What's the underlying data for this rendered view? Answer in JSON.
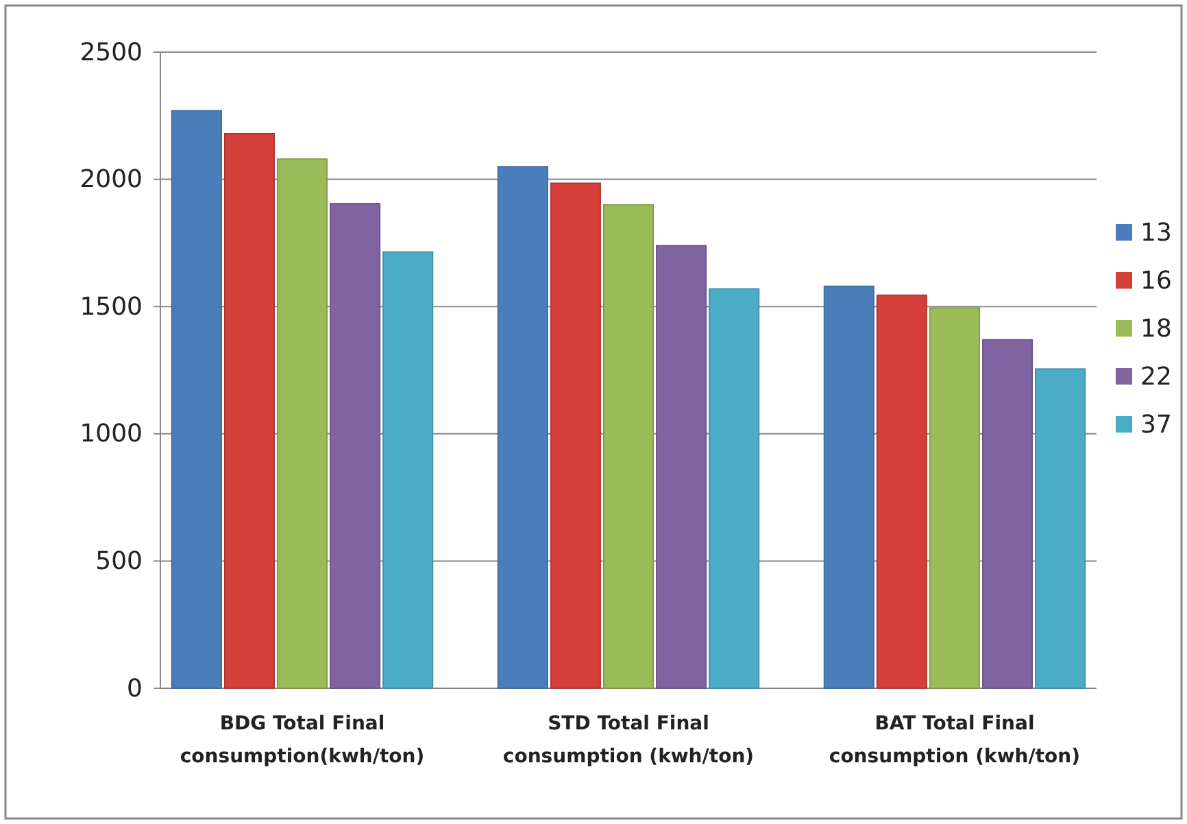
{
  "chart_data": {
    "type": "bar",
    "categories": [
      "BDG Total Final consumption(kwh/ton)",
      "STD Total Final consumption (kwh/ton)",
      "BAT Total Final consumption (kwh/ton)"
    ],
    "series": [
      {
        "name": "13",
        "color": "#4a7ebb",
        "values": [
          2270,
          2050,
          1580
        ]
      },
      {
        "name": "16",
        "color": "#d43f3a",
        "values": [
          2180,
          1985,
          1545
        ]
      },
      {
        "name": "18",
        "color": "#9bbb59",
        "values": [
          2080,
          1900,
          1495
        ]
      },
      {
        "name": "22",
        "color": "#8064a2",
        "values": [
          1905,
          1740,
          1370
        ]
      },
      {
        "name": "37",
        "color": "#4bacc6",
        "values": [
          1715,
          1570,
          1255
        ]
      }
    ],
    "ylim": [
      0,
      2500
    ],
    "yticks": [
      0,
      500,
      1000,
      1500,
      2000,
      2500
    ],
    "grid": "y",
    "legend": "right"
  }
}
